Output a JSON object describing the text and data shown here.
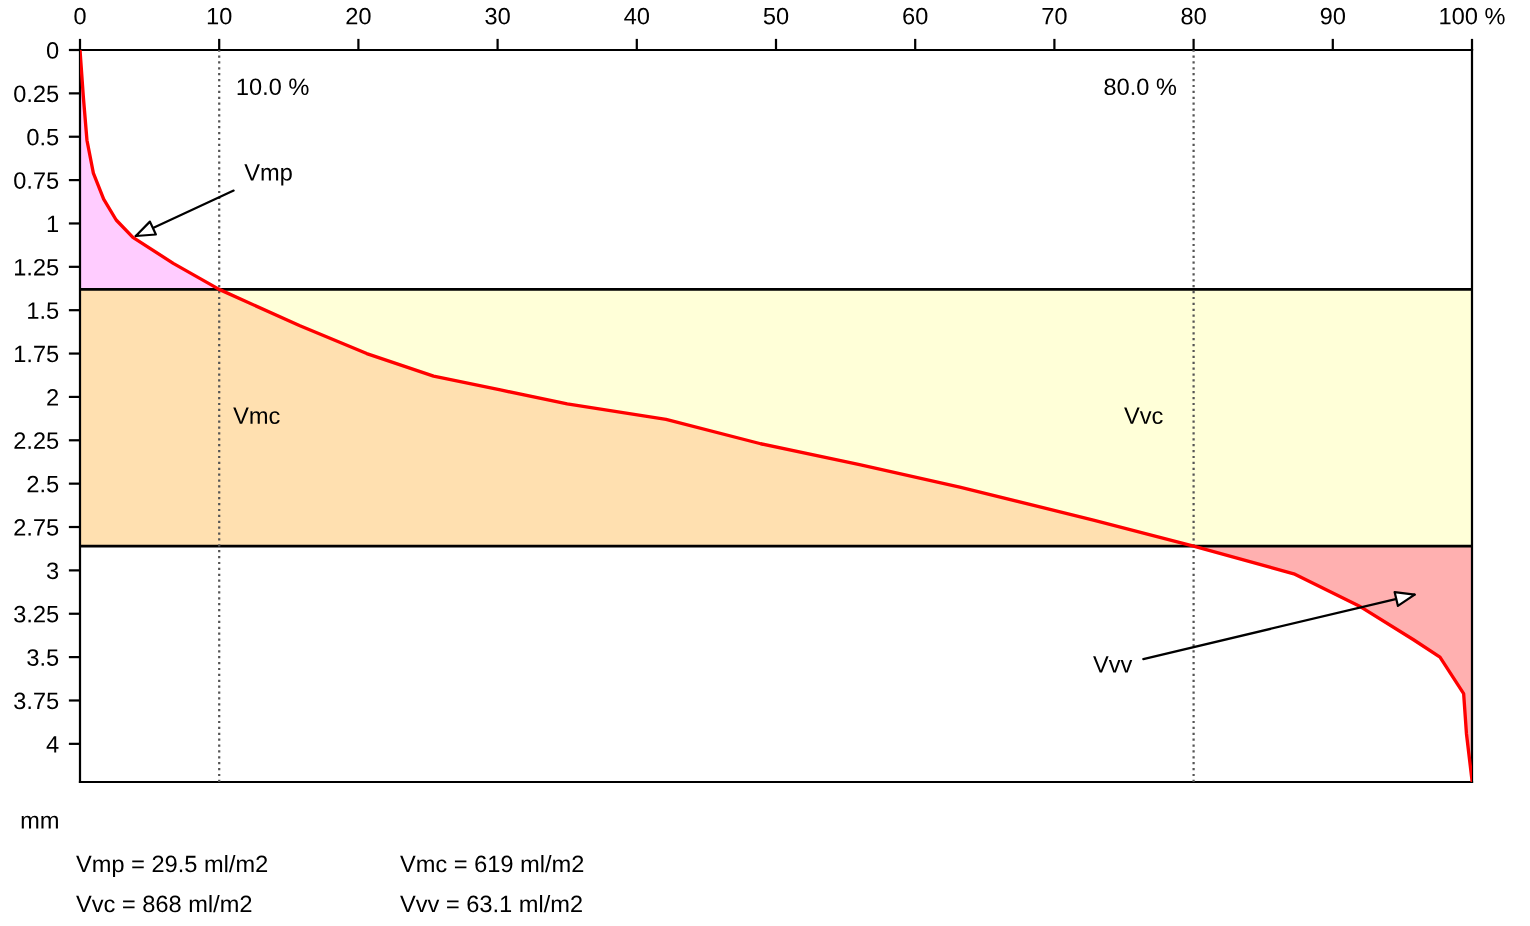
{
  "chart_data": {
    "type": "line",
    "ylabel": "mm",
    "xlim": [
      0,
      100
    ],
    "ylim": [
      4.22,
      0
    ],
    "xticks": [
      0,
      10,
      20,
      30,
      40,
      50,
      60,
      70,
      80,
      90,
      {
        "value": 100,
        "label": "100 %"
      }
    ],
    "yticks": [
      0,
      0.25,
      0.5,
      0.75,
      1,
      1.25,
      1.5,
      1.75,
      2,
      2.25,
      2.5,
      2.75,
      3,
      3.25,
      3.5,
      3.75,
      4
    ],
    "series": [
      {
        "color": "#ff0000",
        "x": [
          0,
          0.24,
          0.5,
          0.96,
          1.7,
          2.6,
          3.8,
          6.7,
          10,
          15.8,
          20.6,
          25.4,
          30.2,
          35,
          42.1,
          48.9,
          56,
          63.2,
          72.8,
          80,
          87.2,
          92,
          95.8,
          97.7,
          99.4,
          99.6,
          100
        ],
        "values": [
          0,
          0.27,
          0.52,
          0.71,
          0.86,
          0.98,
          1.08,
          1.23,
          1.38,
          1.59,
          1.75,
          1.88,
          1.96,
          2.04,
          2.13,
          2.27,
          2.39,
          2.52,
          2.71,
          2.86,
          3.02,
          3.21,
          3.4,
          3.5,
          3.71,
          3.94,
          4.21
        ]
      }
    ],
    "bands": [
      {
        "axis": "y",
        "from": 1.38,
        "to": 2.86,
        "color": "#ffffd8"
      }
    ],
    "ref_lines": [
      {
        "axis": "y",
        "value": 1.38,
        "color": "#000000",
        "line_style": "solid"
      },
      {
        "axis": "y",
        "value": 2.86,
        "color": "#000000",
        "line_style": "solid"
      },
      {
        "axis": "x",
        "value": 10,
        "label": "10.0 %",
        "color": "#555555",
        "line_style": "dotted"
      },
      {
        "axis": "x",
        "value": 80,
        "label": "80.0 %",
        "color": "#555555",
        "line_style": "dotted"
      }
    ],
    "annotations": [
      {
        "text": "Vmp",
        "x": 3.8,
        "y": 1.08
      },
      "Vvv",
      "Vmc",
      "Vvc",
      "Vmp = 29.5 ml/m2",
      "Vmc = 619 ml/m2",
      "Vvc = 868 ml/m2",
      "Vvv = 63.1 ml/m2"
    ],
    "grid": false
  }
}
